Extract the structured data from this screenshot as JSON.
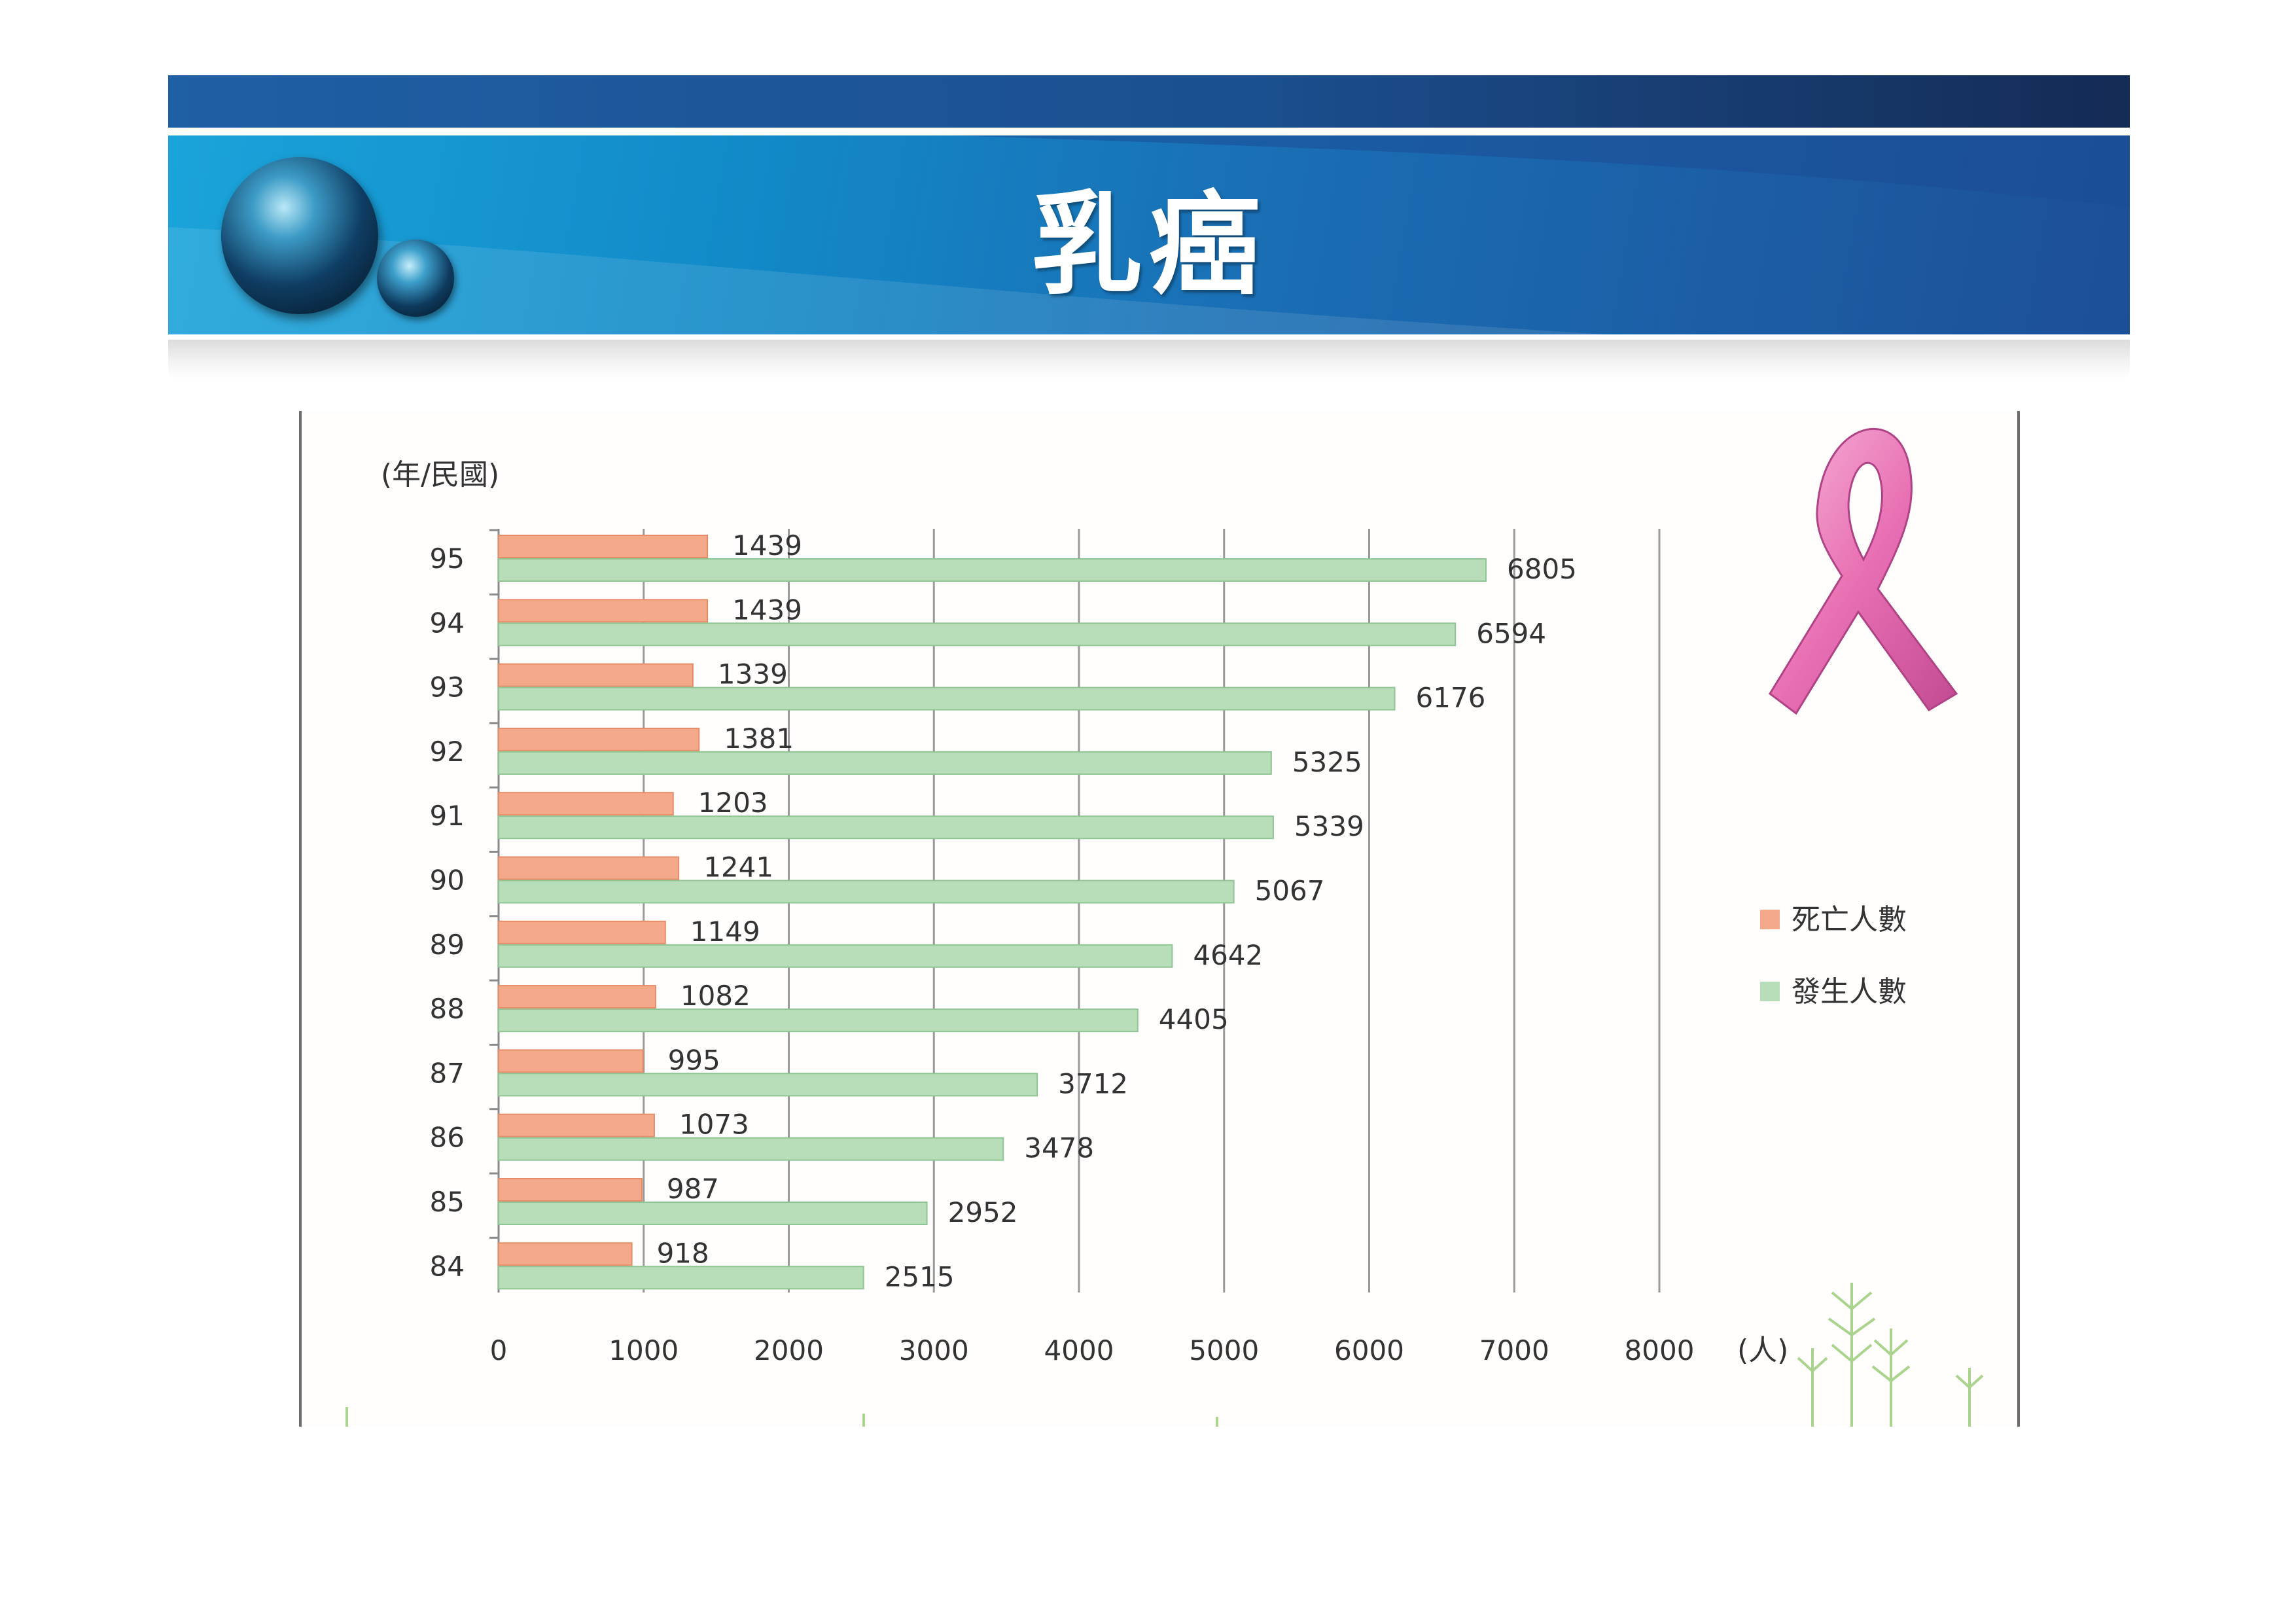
{
  "slide": {
    "title": "乳癌"
  },
  "chart_data": {
    "type": "bar",
    "orientation": "horizontal",
    "y_unit_label": "(年/民國)",
    "x_unit_label": "(人)",
    "categories": [
      "95",
      "94",
      "93",
      "92",
      "91",
      "90",
      "89",
      "88",
      "87",
      "86",
      "85",
      "84"
    ],
    "series": [
      {
        "name": "死亡人數",
        "color": "#f4a98a",
        "values": [
          1439,
          1439,
          1339,
          1381,
          1203,
          1241,
          1149,
          1082,
          995,
          1073,
          987,
          918
        ]
      },
      {
        "name": "發生人數",
        "color": "#b7deb8",
        "values": [
          6805,
          6594,
          6176,
          5325,
          5339,
          5067,
          4642,
          4405,
          3712,
          3478,
          2952,
          2515
        ]
      }
    ],
    "value_labels": {
      "死亡人數": [
        "1439",
        "1439",
        "1339",
        "1381",
        "1203",
        "1241",
        "1149",
        "1082",
        "995",
        "1073",
        "987",
        "918"
      ],
      "發生人數": [
        "6805",
        "6594",
        "6176",
        "5325",
        "5339",
        "5067",
        "4642",
        "4405",
        "3712",
        "3478",
        "2952",
        "2515"
      ]
    },
    "x_ticks": [
      "0",
      "1000",
      "2000",
      "3000",
      "4000",
      "5000",
      "6000",
      "7000",
      "8000"
    ],
    "xlim": [
      0,
      8000
    ],
    "grid": "vertical",
    "legend_position": "right"
  },
  "decor": {
    "ribbon_icon": "pink-ribbon-icon",
    "grass_icon": "grass-icon",
    "banner_colors": [
      "#1aa4da",
      "#1d4f98",
      "#142b55"
    ]
  }
}
